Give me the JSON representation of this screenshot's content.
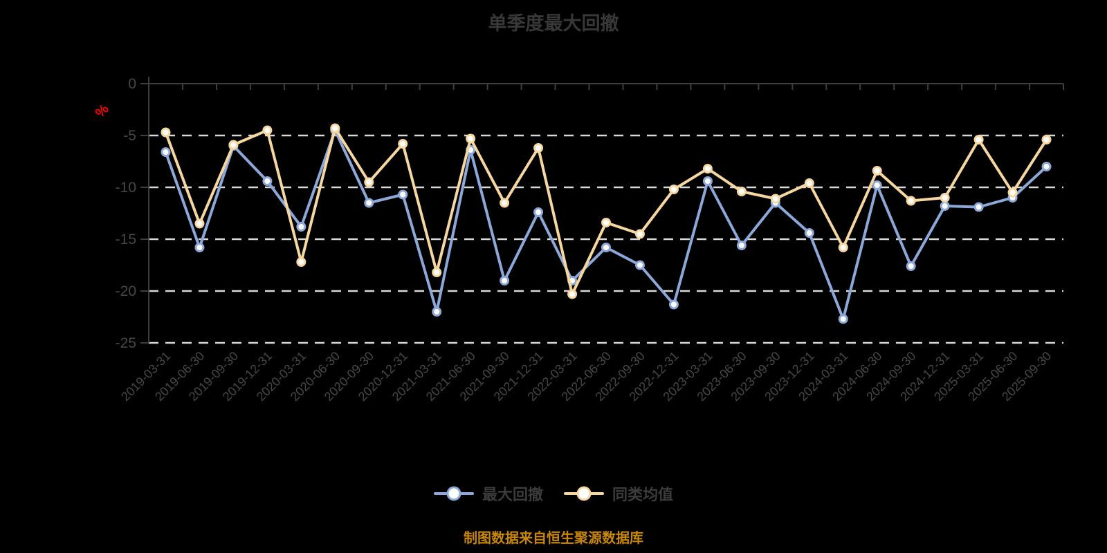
{
  "title": "单季度最大回撤",
  "source_note": "制图数据来自恒生聚源数据库",
  "colors": {
    "background": "#000000",
    "title": "#383838",
    "axis": "#3F3F3F",
    "grid": "#D8D8D8",
    "tick_label": "#474747",
    "unit_label": "#FF0000",
    "legend_text": "#3C3C3C",
    "source_note": "#C8860B",
    "series_max_drawdown": "#8CA8D8",
    "series_category_avg": "#F7D7A0",
    "marker_fill": "#FFFFFF"
  },
  "chart_data": {
    "type": "line",
    "title": "单季度最大回撤",
    "xlabel": "",
    "ylabel": "%",
    "ylim": [
      -25,
      0
    ],
    "yticks": [
      0,
      -5,
      -10,
      -15,
      -20,
      -25
    ],
    "grid": "horizontal dashed lines at -5, -10, -15, -20, -25",
    "legend_position": "bottom",
    "categories": [
      "2019-03-31",
      "2019-06-30",
      "2019-09-30",
      "2019-12-31",
      "2020-03-31",
      "2020-06-30",
      "2020-09-30",
      "2020-12-31",
      "2021-03-31",
      "2021-06-30",
      "2021-09-30",
      "2021-12-31",
      "2022-03-31",
      "2022-06-30",
      "2022-09-30",
      "2022-12-31",
      "2023-03-31",
      "2023-06-30",
      "2023-09-30",
      "2023-12-31",
      "2024-03-31",
      "2024-06-30",
      "2024-09-30",
      "2024-12-31",
      "2025-03-31",
      "2025-06-30",
      "2025-09-30"
    ],
    "series": [
      {
        "name": "最大回撤",
        "color": "#8CA8D8",
        "marker": "circle-white-fill",
        "values": [
          -6.6,
          -15.8,
          -6.0,
          -9.4,
          -13.8,
          -4.5,
          -11.5,
          -10.7,
          -22.0,
          -6.4,
          -19.0,
          -12.4,
          -19.0,
          -15.8,
          -17.5,
          -21.3,
          -9.4,
          -15.6,
          -11.5,
          -14.4,
          -22.7,
          -9.8,
          -17.6,
          -11.8,
          -11.9,
          -11.0,
          -8.0
        ]
      },
      {
        "name": "同类均值",
        "color": "#F7D7A0",
        "marker": "circle-white-fill",
        "values": [
          -4.7,
          -13.5,
          -5.9,
          -4.5,
          -17.2,
          -4.3,
          -9.5,
          -5.8,
          -18.2,
          -5.3,
          -11.5,
          -6.2,
          -20.3,
          -13.4,
          -14.5,
          -10.2,
          -8.2,
          -10.4,
          -11.1,
          -9.6,
          -15.8,
          -8.4,
          -11.3,
          -11.0,
          -5.4,
          -10.5,
          -5.4
        ]
      }
    ]
  }
}
